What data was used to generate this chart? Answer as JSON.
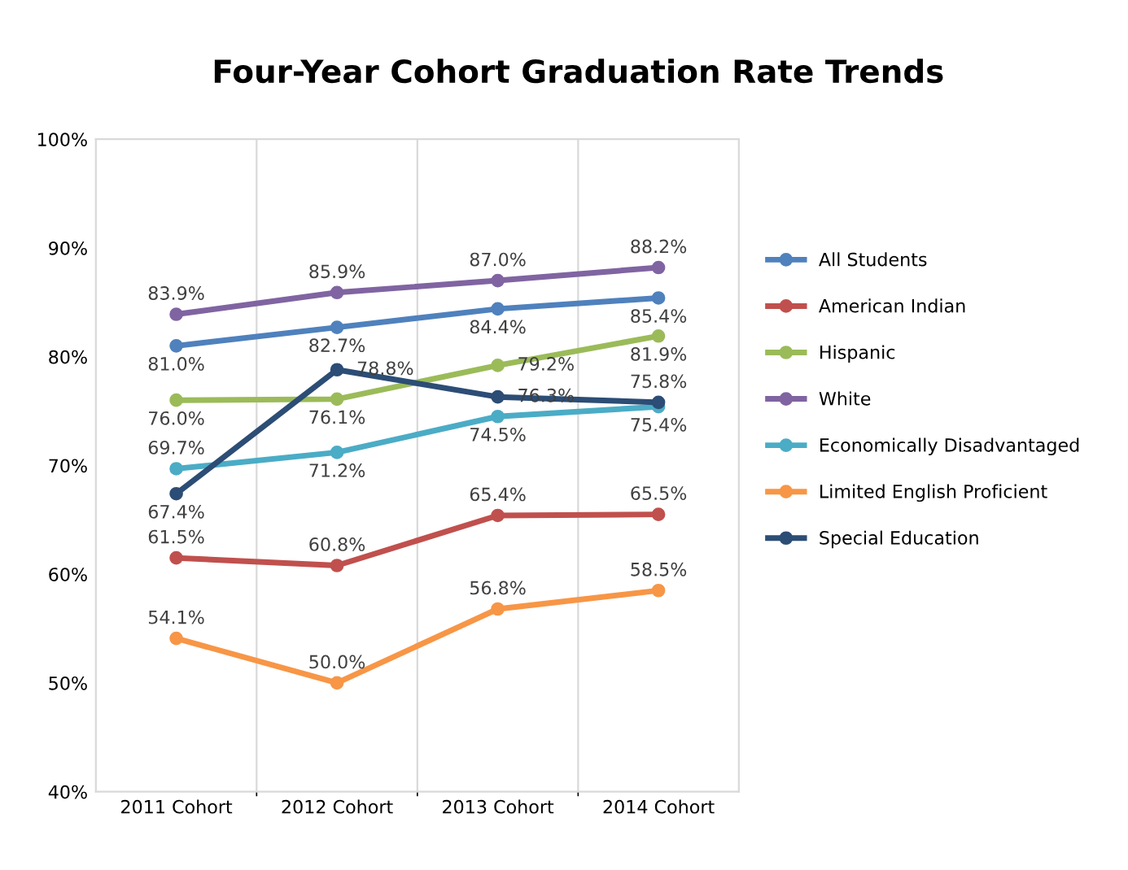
{
  "chart_data": {
    "type": "line",
    "title": "Four-Year Cohort Graduation Rate Trends",
    "categories": [
      "2011 Cohort",
      "2012 Cohort",
      "2013 Cohort",
      "2014 Cohort"
    ],
    "series": [
      {
        "name": "All Students",
        "color": "#4f81bd",
        "values": [
          81.0,
          82.7,
          84.4,
          85.4
        ],
        "value_labels": [
          "81.0%",
          "82.7%",
          "84.4%",
          "85.4%"
        ]
      },
      {
        "name": "American Indian",
        "color": "#c0504d",
        "values": [
          61.5,
          60.8,
          65.4,
          65.5
        ],
        "value_labels": [
          "61.5%",
          "60.8%",
          "65.4%",
          "65.5%"
        ]
      },
      {
        "name": "Hispanic",
        "color": "#9bbb59",
        "values": [
          76.0,
          76.1,
          79.2,
          81.9
        ],
        "value_labels": [
          "76.0%",
          "76.1%",
          "79.2%",
          "81.9%"
        ]
      },
      {
        "name": "White",
        "color": "#8064a2",
        "values": [
          83.9,
          85.9,
          87.0,
          88.2
        ],
        "value_labels": [
          "83.9%",
          "85.9%",
          "87.0%",
          "88.2%"
        ]
      },
      {
        "name": "Economically Disadvantaged",
        "color": "#4bacc6",
        "values": [
          69.7,
          71.2,
          74.5,
          75.4
        ],
        "value_labels": [
          "69.7%",
          "71.2%",
          "74.5%",
          "75.4%"
        ]
      },
      {
        "name": "Limited English Proficient",
        "color": "#f79646",
        "values": [
          54.1,
          50.0,
          56.8,
          58.5
        ],
        "value_labels": [
          "54.1%",
          "50.0%",
          "56.8%",
          "58.5%"
        ]
      },
      {
        "name": "Special Education",
        "color": "#2c4d75",
        "values": [
          67.4,
          78.8,
          76.3,
          75.8
        ],
        "value_labels": [
          "67.4%",
          "78.8%",
          "76.3%",
          "75.8%"
        ]
      }
    ],
    "ylim": [
      40,
      100
    ],
    "yticks": [
      {
        "value": 40,
        "label": "40%"
      },
      {
        "value": 50,
        "label": "50%"
      },
      {
        "value": 60,
        "label": "60%"
      },
      {
        "value": 70,
        "label": "70%"
      },
      {
        "value": 80,
        "label": "80%"
      },
      {
        "value": 90,
        "label": "90%"
      },
      {
        "value": 100,
        "label": "100%"
      }
    ],
    "marker": "circle",
    "line_style": "solid",
    "legend": "right",
    "grid": "x"
  }
}
